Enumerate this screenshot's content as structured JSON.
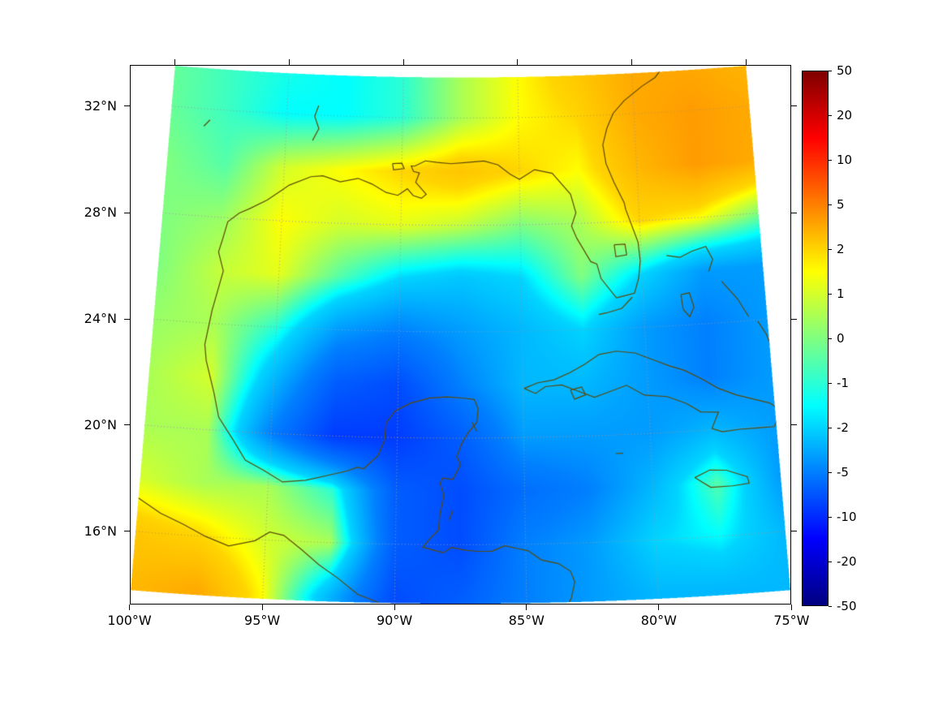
{
  "figure": {
    "background": "#ffffff"
  },
  "plot": {
    "frame_color": "#000000",
    "gridline_color": "#999999",
    "coastline_color": "#5c4a08"
  },
  "map": {
    "projection": {
      "type": "LambertConformal",
      "central_longitude": -87.5,
      "standard_parallel": 22.5
    },
    "extent": {
      "lon_min": -100,
      "lon_max": -75,
      "lat_min": 13.8,
      "lat_max": 33.5
    },
    "x_ticks": [
      {
        "lon": -100,
        "label": "100°W"
      },
      {
        "lon": -95,
        "label": "95°W"
      },
      {
        "lon": -90,
        "label": "90°W"
      },
      {
        "lon": -85,
        "label": "85°W"
      },
      {
        "lon": -80,
        "label": "80°W"
      },
      {
        "lon": -75,
        "label": "75°W"
      }
    ],
    "y_ticks": [
      {
        "lat": 32,
        "label": "32°N"
      },
      {
        "lat": 28,
        "label": "28°N"
      },
      {
        "lat": 24,
        "label": "24°N"
      },
      {
        "lat": 20,
        "label": "20°N"
      },
      {
        "lat": 16,
        "label": "16°N"
      }
    ],
    "gridline_lons": [
      -95,
      -90,
      -85,
      -80
    ],
    "gridline_lats": [
      16,
      20,
      24,
      28,
      32
    ],
    "coastlines": {
      "us_gulf_atlantic_coast": [
        [
          -78.4,
          33.9
        ],
        [
          -79.0,
          33.3
        ],
        [
          -79.6,
          33.0
        ],
        [
          -80.4,
          32.5
        ],
        [
          -80.9,
          32.05
        ],
        [
          -81.2,
          31.5
        ],
        [
          -81.4,
          30.9
        ],
        [
          -81.3,
          30.2
        ],
        [
          -81.0,
          29.5
        ],
        [
          -80.6,
          28.7
        ],
        [
          -80.55,
          28.45
        ],
        [
          -80.1,
          27.2
        ],
        [
          -80.05,
          26.5
        ],
        [
          -80.15,
          25.85
        ],
        [
          -80.35,
          25.3
        ],
        [
          -80.85,
          25.2
        ],
        [
          -81.1,
          25.15
        ],
        [
          -81.7,
          25.9
        ],
        [
          -81.85,
          26.45
        ],
        [
          -82.1,
          26.55
        ],
        [
          -82.65,
          27.45
        ],
        [
          -82.85,
          27.9
        ],
        [
          -82.65,
          28.4
        ],
        [
          -82.85,
          29.1
        ],
        [
          -83.6,
          29.9
        ],
        [
          -84.35,
          30.05
        ],
        [
          -85.0,
          29.7
        ],
        [
          -85.4,
          29.9
        ],
        [
          -85.9,
          30.25
        ],
        [
          -86.5,
          30.4
        ],
        [
          -87.2,
          30.35
        ],
        [
          -87.9,
          30.3
        ],
        [
          -88.5,
          30.35
        ],
        [
          -89.0,
          30.4
        ],
        [
          -89.45,
          30.2
        ],
        [
          -89.6,
          30.2
        ],
        [
          -89.5,
          30.0
        ],
        [
          -89.25,
          29.95
        ],
        [
          -89.4,
          29.6
        ],
        [
          -89.05,
          29.25
        ],
        [
          -88.95,
          29.15
        ],
        [
          -89.15,
          29.0
        ],
        [
          -89.5,
          29.1
        ],
        [
          -89.75,
          29.35
        ],
        [
          -90.15,
          29.1
        ],
        [
          -90.65,
          29.2
        ],
        [
          -91.25,
          29.5
        ],
        [
          -91.85,
          29.7
        ],
        [
          -92.6,
          29.55
        ],
        [
          -93.35,
          29.75
        ],
        [
          -93.85,
          29.7
        ],
        [
          -94.75,
          29.35
        ],
        [
          -95.05,
          29.15
        ],
        [
          -95.65,
          28.75
        ],
        [
          -96.35,
          28.4
        ],
        [
          -96.8,
          28.2
        ],
        [
          -97.25,
          27.85
        ],
        [
          -97.4,
          27.25
        ],
        [
          -97.55,
          26.7
        ],
        [
          -97.3,
          26.0
        ],
        [
          -97.5,
          25.15
        ],
        [
          -97.65,
          24.5
        ],
        [
          -97.85,
          23.2
        ],
        [
          -97.75,
          22.6
        ],
        [
          -97.35,
          21.4
        ],
        [
          -97.1,
          20.5
        ],
        [
          -96.45,
          19.65
        ],
        [
          -95.95,
          18.95
        ],
        [
          -95.2,
          18.6
        ],
        [
          -94.45,
          18.2
        ],
        [
          -93.55,
          18.3
        ],
        [
          -92.75,
          18.5
        ],
        [
          -91.95,
          18.7
        ],
        [
          -91.55,
          18.85
        ],
        [
          -91.3,
          18.8
        ],
        [
          -90.75,
          19.3
        ],
        [
          -90.5,
          19.9
        ],
        [
          -90.45,
          20.55
        ],
        [
          -90.1,
          21.0
        ],
        [
          -89.5,
          21.3
        ],
        [
          -88.75,
          21.5
        ],
        [
          -88.05,
          21.55
        ],
        [
          -87.35,
          21.5
        ],
        [
          -86.95,
          21.45
        ],
        [
          -86.8,
          21.1
        ],
        [
          -86.85,
          20.6
        ],
        [
          -87.2,
          20.2
        ],
        [
          -87.45,
          19.8
        ],
        [
          -87.65,
          19.3
        ],
        [
          -87.5,
          19.0
        ],
        [
          -87.8,
          18.45
        ],
        [
          -88.2,
          18.5
        ],
        [
          -88.3,
          18.3
        ],
        [
          -88.15,
          17.85
        ],
        [
          -88.3,
          17.15
        ],
        [
          -88.35,
          16.55
        ],
        [
          -88.65,
          16.25
        ],
        [
          -88.95,
          15.9
        ],
        [
          -88.55,
          15.8
        ],
        [
          -88.15,
          15.7
        ],
        [
          -87.85,
          15.9
        ],
        [
          -87.35,
          15.8
        ],
        [
          -86.85,
          15.75
        ],
        [
          -86.3,
          15.75
        ],
        [
          -85.8,
          15.95
        ],
        [
          -85.35,
          15.85
        ],
        [
          -84.9,
          15.75
        ],
        [
          -84.4,
          15.4
        ],
        [
          -83.75,
          15.25
        ],
        [
          -83.3,
          14.95
        ],
        [
          -83.15,
          14.55
        ],
        [
          -83.3,
          13.95
        ],
        [
          -83.5,
          13.6
        ]
      ],
      "florida_keys": [
        [
          -80.45,
          25.15
        ],
        [
          -80.9,
          24.75
        ],
        [
          -81.55,
          24.6
        ],
        [
          -81.85,
          24.55
        ]
      ],
      "pacific_coast": [
        [
          -100,
          17.25
        ],
        [
          -99.1,
          16.75
        ],
        [
          -98.2,
          16.4
        ],
        [
          -97.3,
          16.0
        ],
        [
          -96.4,
          15.7
        ],
        [
          -95.4,
          15.95
        ],
        [
          -94.85,
          16.3
        ],
        [
          -94.3,
          16.2
        ],
        [
          -93.6,
          15.7
        ],
        [
          -92.9,
          15.15
        ],
        [
          -92.2,
          14.7
        ],
        [
          -91.4,
          14.1
        ],
        [
          -90.7,
          13.85
        ],
        [
          -90.25,
          13.6
        ]
      ],
      "cuba": [
        [
          -84.95,
          21.85
        ],
        [
          -84.4,
          22.05
        ],
        [
          -83.75,
          22.15
        ],
        [
          -83.1,
          22.4
        ],
        [
          -82.5,
          22.7
        ],
        [
          -81.9,
          23.05
        ],
        [
          -81.2,
          23.15
        ],
        [
          -80.45,
          23.05
        ],
        [
          -79.7,
          22.75
        ],
        [
          -79.1,
          22.5
        ],
        [
          -78.5,
          22.3
        ],
        [
          -77.85,
          21.95
        ],
        [
          -77.2,
          21.55
        ],
        [
          -76.5,
          21.25
        ],
        [
          -75.85,
          21.05
        ],
        [
          -75.2,
          20.85
        ],
        [
          -74.9,
          20.65
        ],
        [
          -74.85,
          20.3
        ],
        [
          -75.1,
          19.95
        ],
        [
          -75.75,
          19.95
        ],
        [
          -76.45,
          19.95
        ],
        [
          -77.15,
          19.9
        ],
        [
          -77.55,
          20.05
        ],
        [
          -77.25,
          20.65
        ],
        [
          -77.95,
          20.7
        ],
        [
          -78.5,
          21.05
        ],
        [
          -79.25,
          21.35
        ],
        [
          -80.15,
          21.45
        ],
        [
          -80.85,
          21.85
        ],
        [
          -81.65,
          21.6
        ],
        [
          -82.15,
          21.45
        ],
        [
          -82.8,
          21.7
        ],
        [
          -83.45,
          21.95
        ],
        [
          -84.1,
          21.9
        ],
        [
          -84.5,
          21.65
        ],
        [
          -84.95,
          21.85
        ]
      ],
      "isla_de_la_juventud": [
        [
          -83.1,
          21.75
        ],
        [
          -82.65,
          21.85
        ],
        [
          -82.5,
          21.55
        ],
        [
          -82.95,
          21.4
        ],
        [
          -83.1,
          21.75
        ]
      ],
      "jamaica": [
        [
          -78.35,
          18.25
        ],
        [
          -77.75,
          18.5
        ],
        [
          -77.1,
          18.45
        ],
        [
          -76.3,
          18.15
        ],
        [
          -76.25,
          17.9
        ],
        [
          -76.9,
          17.85
        ],
        [
          -77.75,
          17.85
        ],
        [
          -78.35,
          18.25
        ]
      ],
      "grand_bahama_abaco": [
        [
          -78.95,
          26.65
        ],
        [
          -78.4,
          26.55
        ],
        [
          -77.9,
          26.75
        ],
        [
          -77.3,
          26.9
        ],
        [
          -77.05,
          26.4
        ],
        [
          -77.25,
          25.95
        ]
      ],
      "andros": [
        [
          -78.45,
          25.15
        ],
        [
          -78.1,
          25.2
        ],
        [
          -77.95,
          24.65
        ],
        [
          -78.15,
          24.3
        ],
        [
          -78.4,
          24.6
        ],
        [
          -78.45,
          25.15
        ]
      ],
      "eleuthera_cat": [
        [
          -76.75,
          25.55
        ],
        [
          -76.15,
          24.85
        ],
        [
          -75.75,
          24.15
        ]
      ],
      "long_island_chain": [
        [
          -75.4,
          23.95
        ],
        [
          -75.1,
          23.45
        ],
        [
          -74.95,
          23.0
        ]
      ],
      "lake_okeechobee": [
        [
          -81.1,
          27.15
        ],
        [
          -80.65,
          27.15
        ],
        [
          -80.6,
          26.75
        ],
        [
          -81.05,
          26.7
        ],
        [
          -81.1,
          27.15
        ]
      ],
      "lake_pontchartrain": [
        [
          -90.4,
          30.28
        ],
        [
          -90.0,
          30.3
        ],
        [
          -89.9,
          30.1
        ],
        [
          -90.35,
          30.05
        ],
        [
          -90.4,
          30.28
        ]
      ],
      "toledo_bend": [
        [
          -93.85,
          31.05
        ],
        [
          -93.6,
          31.5
        ],
        [
          -93.8,
          31.95
        ],
        [
          -93.65,
          32.35
        ]
      ],
      "texas_lake": [
        [
          -98.55,
          31.35
        ],
        [
          -98.3,
          31.6
        ]
      ],
      "cozumel": [
        [
          -87.05,
          20.6
        ],
        [
          -86.85,
          20.25
        ]
      ],
      "belize_cays": [
        [
          -87.8,
          17.3
        ],
        [
          -87.95,
          16.9
        ]
      ],
      "grand_cayman": [
        [
          -81.4,
          19.3
        ],
        [
          -81.1,
          19.3
        ]
      ]
    }
  },
  "chart_data": {
    "type": "heatmap",
    "title": "",
    "description": "Scalar anomaly field over the Gulf of Mexico / western Atlantic / NW Caribbean region, jet colormap on a symmetric non-linear (symlog-like) scale from -50 to 50",
    "colormap": "jet",
    "colormap_stops": [
      [
        0,
        0,
        0,
        127
      ],
      [
        0.125,
        0,
        0,
        255
      ],
      [
        0.375,
        0,
        255,
        255
      ],
      [
        0.625,
        255,
        255,
        0
      ],
      [
        0.875,
        255,
        0,
        0
      ],
      [
        1,
        127,
        0,
        0
      ]
    ],
    "value_scale_ticks": [
      -50,
      -20,
      -10,
      -5,
      -2,
      -1,
      0,
      1,
      2,
      5,
      10,
      20,
      50
    ],
    "lon": [
      -100,
      -97.5,
      -95,
      -92.5,
      -90,
      -87.5,
      -85,
      -82.5,
      -80,
      -77.5,
      -75
    ],
    "lat": [
      14,
      16,
      18,
      20,
      22,
      24,
      26,
      28,
      30,
      32,
      34
    ],
    "values_layout": "values[lat_index][lon_index], lat ascending south to north",
    "values": [
      [
        3,
        3.5,
        1.5,
        -3,
        -8,
        -7,
        -5,
        -4,
        -3,
        -3,
        -3
      ],
      [
        2.5,
        2,
        1,
        0.5,
        -7,
        -8,
        -5,
        -4,
        -2,
        -1.5,
        -3
      ],
      [
        1,
        0.5,
        0.5,
        -1,
        -7,
        -8,
        -6,
        -5,
        -3,
        -0.5,
        -4
      ],
      [
        0.5,
        0.5,
        -5,
        -9,
        -9,
        -7,
        -4,
        -4,
        -4,
        -3,
        -4
      ],
      [
        0.5,
        1,
        -3,
        -7,
        -8,
        -5,
        -3,
        -3,
        -4,
        -5,
        -4
      ],
      [
        0.3,
        0.5,
        -1,
        -4,
        -5,
        -4,
        -3,
        -2,
        -4,
        -5,
        -4
      ],
      [
        0,
        0.8,
        1.2,
        -0.5,
        -2,
        -2.5,
        -2,
        0,
        -2,
        -4,
        -4
      ],
      [
        0,
        0.3,
        1.5,
        1,
        1.2,
        0.8,
        0,
        0.5,
        2,
        1.5,
        0
      ],
      [
        0,
        -0.5,
        1,
        1.5,
        2,
        2.5,
        2,
        1.5,
        3,
        4,
        3.5
      ],
      [
        -0.3,
        -0.8,
        -1.5,
        -1.5,
        -1,
        0.5,
        1.5,
        2,
        3.5,
        4,
        3.5
      ],
      [
        -0.3,
        -0.8,
        -1.2,
        -1.5,
        -1,
        0.5,
        1.5,
        2.5,
        3.5,
        3.5,
        3
      ]
    ],
    "colorbar": {
      "min": -50,
      "max": 50,
      "tick_labels": [
        "50",
        "20",
        "10",
        "5",
        "2",
        "1",
        "0",
        "-1",
        "-2",
        "-5",
        "-10",
        "-20",
        "-50"
      ]
    }
  }
}
